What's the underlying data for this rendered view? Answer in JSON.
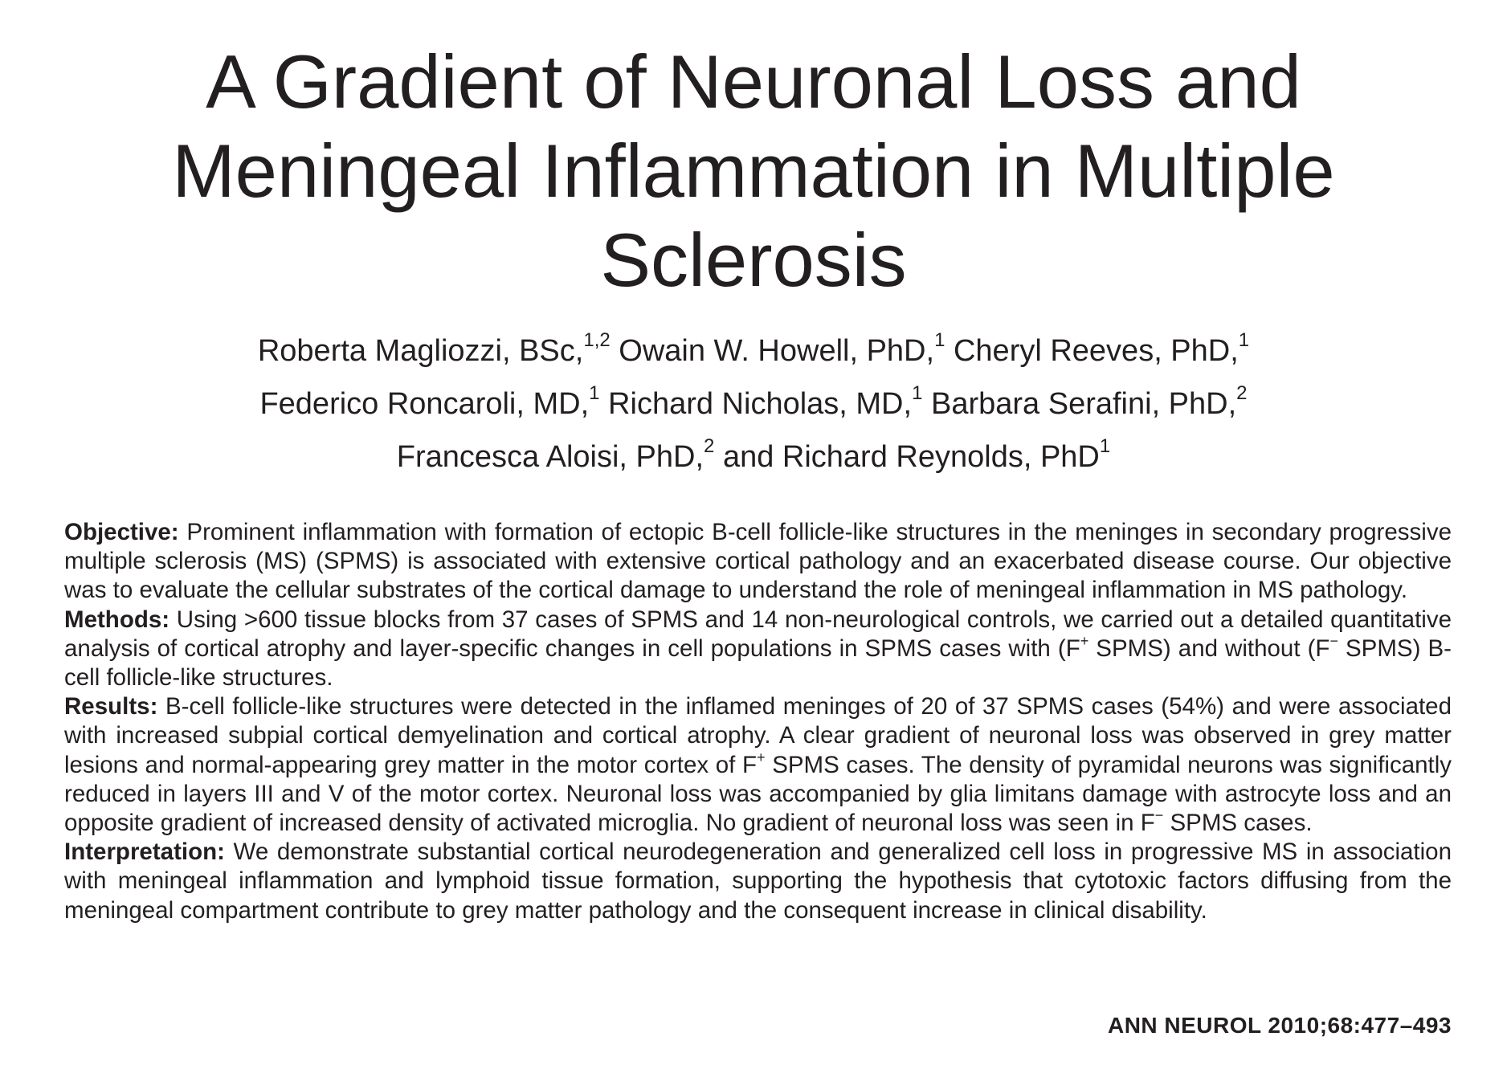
{
  "title": {
    "line1": "A Gradient of Neuronal Loss and",
    "line2": "Meningeal Inflammation in Multiple",
    "line3": "Sclerosis"
  },
  "authors": {
    "line1": [
      {
        "name": "Roberta Magliozzi, BSc,",
        "sup": "1,2"
      },
      {
        "name": " Owain W. Howell, PhD,",
        "sup": "1"
      },
      {
        "name": " Cheryl Reeves, PhD,",
        "sup": "1"
      }
    ],
    "line2": [
      {
        "name": "Federico Roncaroli, MD,",
        "sup": "1"
      },
      {
        "name": " Richard Nicholas, MD,",
        "sup": "1"
      },
      {
        "name": " Barbara Serafini, PhD,",
        "sup": "2"
      }
    ],
    "line3": [
      {
        "name": "Francesca Aloisi, PhD,",
        "sup": "2"
      },
      {
        "name": " and Richard Reynolds, PhD",
        "sup": "1"
      }
    ]
  },
  "abstract": {
    "objective": {
      "label": "Objective:",
      "text": " Prominent inflammation with formation of ectopic B-cell follicle-like structures in the meninges in secondary progressive multiple sclerosis (MS) (SPMS) is associated with extensive cortical pathology and an exacerbated disease course. Our objective was to evaluate the cellular substrates of the cortical damage to understand the role of meningeal inflammation in MS pathology."
    },
    "methods": {
      "label": "Methods:",
      "text_a": " Using >600 tissue blocks from 37 cases of SPMS and 14 non-neurological controls, we carried out a detailed quantitative analysis of cortical atrophy and layer-specific changes in cell populations in SPMS cases with (F",
      "sup_a": "+",
      "text_b": " SPMS) and without (F",
      "sup_b": "−",
      "text_c": " SPMS) B-cell follicle-like structures."
    },
    "results": {
      "label": "Results:",
      "text_a": " B-cell follicle-like structures were detected in the inflamed meninges of 20 of 37 SPMS cases (54%) and were associated with increased subpial cortical demyelination and cortical atrophy. A clear gradient of neuronal loss was observed in grey matter lesions and normal-appearing grey matter in the motor cortex of F",
      "sup_a": "+",
      "text_b": " SPMS cases. The density of pyramidal neurons was significantly reduced in layers III and V of the motor cortex. Neuronal loss was accompanied by glia limitans damage with astrocyte loss and an opposite gradient of increased density of activated microglia. No gradient of neuronal loss was seen in F",
      "sup_b": "−",
      "text_c": " SPMS cases."
    },
    "interpretation": {
      "label": "Interpretation:",
      "text": " We demonstrate substantial cortical neurodegeneration and generalized cell loss in progressive MS in association with meningeal inflammation and lymphoid tissue formation, supporting the hypothesis that cytotoxic factors diffusing from the meningeal compartment contribute to grey matter pathology and the consequent increase in clinical disability."
    }
  },
  "citation": "ANN NEUROL 2010;68:477–493"
}
